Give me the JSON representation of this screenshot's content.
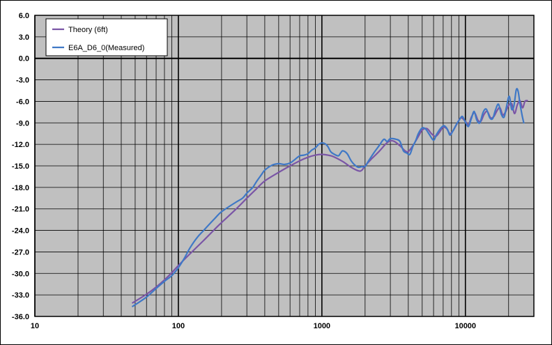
{
  "chart_data": {
    "type": "line",
    "title": "",
    "xlabel": "",
    "ylabel": "",
    "x_scale": "log",
    "xlim": [
      10,
      30000
    ],
    "ylim": [
      -36,
      6
    ],
    "x_tick_labels": [
      {
        "value": 10,
        "label": "10"
      },
      {
        "value": 100,
        "label": "100"
      },
      {
        "value": 1000,
        "label": "1000"
      },
      {
        "value": 10000,
        "label": "10000"
      }
    ],
    "y_ticks": [
      6,
      3,
      0,
      -3,
      -6,
      -9,
      -12,
      -15,
      -18,
      -21,
      -24,
      -27,
      -30,
      -33,
      -36
    ],
    "y_tick_labels": [
      "6.0",
      "3.0",
      "0.0",
      "-3.0",
      "-6.0",
      "-9.0",
      "-12.0",
      "-15.0",
      "-18.0",
      "-21.0",
      "-24.0",
      "-27.0",
      "-30.0",
      "-33.0",
      "-36.0"
    ],
    "grid": true,
    "plot_background": "#c0c0c0",
    "legend_position": "top-left",
    "series": [
      {
        "name": "Theory (6ft)",
        "color": "#7a55a6",
        "points": [
          [
            48,
            -34.1
          ],
          [
            60,
            -32.9
          ],
          [
            70,
            -31.9
          ],
          [
            80,
            -30.9
          ],
          [
            90,
            -29.9
          ],
          [
            100,
            -28.9
          ],
          [
            120,
            -27.3
          ],
          [
            150,
            -25.4
          ],
          [
            180,
            -23.8
          ],
          [
            200,
            -22.9
          ],
          [
            250,
            -21.1
          ],
          [
            300,
            -19.5
          ],
          [
            350,
            -18.2
          ],
          [
            400,
            -17.1
          ],
          [
            500,
            -15.9
          ],
          [
            600,
            -15.0
          ],
          [
            700,
            -14.3
          ],
          [
            800,
            -13.8
          ],
          [
            900,
            -13.5
          ],
          [
            1000,
            -13.4
          ],
          [
            1100,
            -13.5
          ],
          [
            1200,
            -13.7
          ],
          [
            1400,
            -14.4
          ],
          [
            1600,
            -15.2
          ],
          [
            1800,
            -15.7
          ],
          [
            1900,
            -15.6
          ],
          [
            2000,
            -15.0
          ],
          [
            2200,
            -14.1
          ],
          [
            2500,
            -13.0
          ],
          [
            2800,
            -11.9
          ],
          [
            3000,
            -11.5
          ],
          [
            3200,
            -11.6
          ],
          [
            3500,
            -12.2
          ],
          [
            3800,
            -12.9
          ],
          [
            4000,
            -13.0
          ],
          [
            4300,
            -12.2
          ],
          [
            4700,
            -10.9
          ],
          [
            5000,
            -10.0
          ],
          [
            5400,
            -9.8
          ],
          [
            5800,
            -10.5
          ],
          [
            6200,
            -10.9
          ],
          [
            6600,
            -10.3
          ],
          [
            7000,
            -9.6
          ],
          [
            7400,
            -9.8
          ],
          [
            7800,
            -10.5
          ],
          [
            8200,
            -10.1
          ],
          [
            8700,
            -9.2
          ],
          [
            9300,
            -8.3
          ],
          [
            10000,
            -8.8
          ],
          [
            10500,
            -9.3
          ],
          [
            11000,
            -8.2
          ],
          [
            11600,
            -7.6
          ],
          [
            12200,
            -8.6
          ],
          [
            12800,
            -8.8
          ],
          [
            13500,
            -7.8
          ],
          [
            14200,
            -7.4
          ],
          [
            15000,
            -8.3
          ],
          [
            15800,
            -8.1
          ],
          [
            16600,
            -7.3
          ],
          [
            17400,
            -6.9
          ],
          [
            18200,
            -7.9
          ],
          [
            19000,
            -7.5
          ],
          [
            20000,
            -6.6
          ],
          [
            21000,
            -6.3
          ],
          [
            22000,
            -7.7
          ],
          [
            23000,
            -6.5
          ],
          [
            24000,
            -5.9
          ],
          [
            25000,
            -6.9
          ],
          [
            26000,
            -6.0
          ],
          [
            27000,
            -5.9
          ]
        ]
      },
      {
        "name": "E6A_D6_0(Measured)",
        "color": "#3f78c6",
        "points": [
          [
            48,
            -34.6
          ],
          [
            60,
            -33.3
          ],
          [
            70,
            -32.1
          ],
          [
            80,
            -31.1
          ],
          [
            90,
            -30.3
          ],
          [
            100,
            -29.2
          ],
          [
            110,
            -27.9
          ],
          [
            120,
            -26.5
          ],
          [
            135,
            -25.0
          ],
          [
            150,
            -24.0
          ],
          [
            180,
            -22.3
          ],
          [
            200,
            -21.4
          ],
          [
            250,
            -20.1
          ],
          [
            280,
            -19.5
          ],
          [
            300,
            -18.8
          ],
          [
            330,
            -18.0
          ],
          [
            350,
            -17.2
          ],
          [
            380,
            -16.2
          ],
          [
            400,
            -15.6
          ],
          [
            450,
            -14.9
          ],
          [
            500,
            -14.7
          ],
          [
            550,
            -14.8
          ],
          [
            600,
            -14.6
          ],
          [
            650,
            -14.1
          ],
          [
            700,
            -13.6
          ],
          [
            750,
            -13.5
          ],
          [
            800,
            -13.3
          ],
          [
            850,
            -12.8
          ],
          [
            900,
            -12.5
          ],
          [
            950,
            -12.0
          ],
          [
            1000,
            -11.8
          ],
          [
            1050,
            -11.9
          ],
          [
            1100,
            -12.3
          ],
          [
            1150,
            -13.0
          ],
          [
            1200,
            -13.3
          ],
          [
            1300,
            -13.6
          ],
          [
            1350,
            -13.2
          ],
          [
            1400,
            -12.9
          ],
          [
            1500,
            -13.3
          ],
          [
            1600,
            -14.3
          ],
          [
            1700,
            -14.9
          ],
          [
            1800,
            -15.2
          ],
          [
            1900,
            -15.1
          ],
          [
            2000,
            -15.1
          ],
          [
            2100,
            -14.4
          ],
          [
            2300,
            -13.2
          ],
          [
            2500,
            -12.2
          ],
          [
            2700,
            -11.3
          ],
          [
            2850,
            -11.6
          ],
          [
            3000,
            -11.2
          ],
          [
            3300,
            -11.3
          ],
          [
            3500,
            -11.6
          ],
          [
            3700,
            -12.9
          ],
          [
            3900,
            -13.2
          ],
          [
            4100,
            -13.4
          ],
          [
            4300,
            -12.3
          ],
          [
            4500,
            -11.5
          ],
          [
            4700,
            -10.5
          ],
          [
            5000,
            -9.7
          ],
          [
            5300,
            -9.9
          ],
          [
            5600,
            -10.6
          ],
          [
            6000,
            -11.4
          ],
          [
            6300,
            -10.6
          ],
          [
            6700,
            -9.8
          ],
          [
            7100,
            -9.4
          ],
          [
            7500,
            -9.9
          ],
          [
            7800,
            -10.7
          ],
          [
            8200,
            -10.1
          ],
          [
            8600,
            -9.3
          ],
          [
            9000,
            -8.7
          ],
          [
            9500,
            -8.1
          ],
          [
            10000,
            -8.9
          ],
          [
            10500,
            -9.5
          ],
          [
            11000,
            -8.4
          ],
          [
            11500,
            -7.4
          ],
          [
            12000,
            -8.6
          ],
          [
            12600,
            -9.0
          ],
          [
            13300,
            -7.5
          ],
          [
            14000,
            -7.1
          ],
          [
            14800,
            -8.3
          ],
          [
            15500,
            -8.4
          ],
          [
            16200,
            -7.2
          ],
          [
            17000,
            -6.4
          ],
          [
            17800,
            -7.8
          ],
          [
            18600,
            -8.2
          ],
          [
            19300,
            -6.8
          ],
          [
            20200,
            -5.3
          ],
          [
            21000,
            -7.1
          ],
          [
            21800,
            -6.6
          ],
          [
            22600,
            -4.4
          ],
          [
            23300,
            -4.6
          ],
          [
            24000,
            -6.3
          ],
          [
            24800,
            -7.9
          ],
          [
            25500,
            -9.0
          ]
        ]
      }
    ]
  }
}
